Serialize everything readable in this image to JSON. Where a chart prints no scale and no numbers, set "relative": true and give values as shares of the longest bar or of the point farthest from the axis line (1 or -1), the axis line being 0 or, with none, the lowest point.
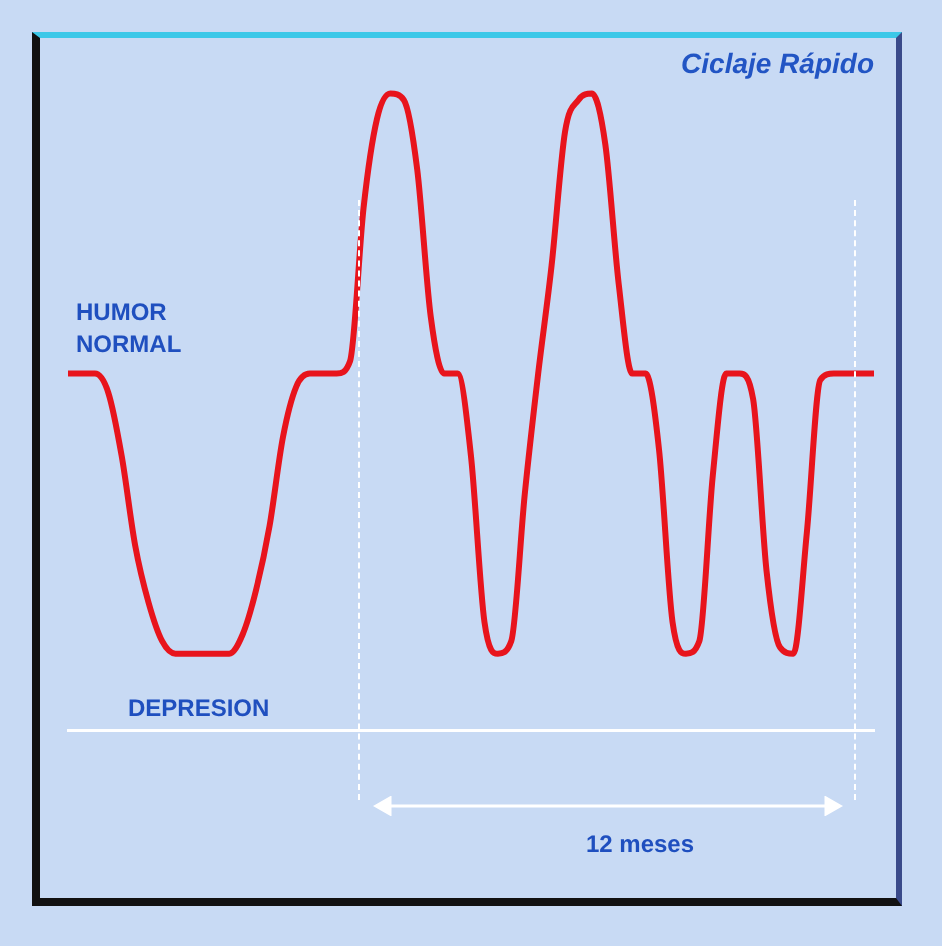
{
  "chart_data": {
    "type": "line",
    "title": "Ciclaje Rápido",
    "relative": true,
    "marker": "none",
    "line_style": "solid",
    "color": "#e8141c",
    "categories": [
      null,
      null,
      null,
      null,
      null,
      null,
      null,
      null,
      null,
      null,
      null,
      null,
      null,
      null,
      null,
      null,
      null,
      null,
      null,
      null,
      null,
      null,
      null,
      null,
      null,
      null,
      null,
      null,
      null,
      null,
      null,
      null,
      null,
      null,
      null,
      null,
      null,
      null,
      null,
      null,
      null,
      null,
      null,
      null,
      null,
      null,
      null,
      null,
      null,
      null,
      null,
      null,
      null,
      null,
      null,
      null,
      null,
      null,
      null,
      null,
      null
    ],
    "values": [
      0.56,
      0.56,
      0.56,
      0.53,
      0.43,
      0.29,
      0.2,
      0.14,
      0.12,
      0.12,
      0.12,
      0.12,
      0.12,
      0.15,
      0.22,
      0.32,
      0.46,
      0.54,
      0.56,
      0.56,
      0.56,
      0.58,
      0.82,
      0.96,
      1,
      0.99,
      0.88,
      0.65,
      0.56,
      0.56,
      0.43,
      0.17,
      0.12,
      0.14,
      0.37,
      0.56,
      0.73,
      0.94,
      0.99,
      1,
      0.92,
      0.7,
      0.56,
      0.56,
      0.44,
      0.17,
      0.12,
      0.14,
      0.4,
      0.56,
      0.56,
      0.52,
      0.25,
      0.13,
      0.12,
      0.31,
      0.55,
      0.56,
      0.56,
      0.56,
      0.56
    ],
    "annotations": [
      "HUMOR NORMAL",
      "DEPRESION",
      "12 meses"
    ]
  }
}
